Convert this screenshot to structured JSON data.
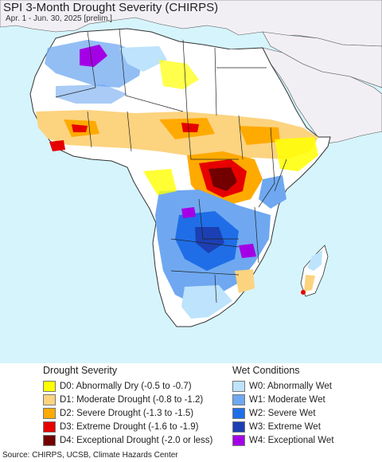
{
  "header": {
    "title": "SPI 3-Month Drought Severity (CHIRPS)",
    "subtitle": "Apr. 1 - Jun. 30, 2025 [prelim.]"
  },
  "legend": {
    "drought": {
      "heading": "Drought Severity",
      "items": [
        {
          "label": "D0: Abnormally Dry (-0.5 to -0.7)",
          "color": "#ffff00"
        },
        {
          "label": "D1: Moderate Drought (-0.8 to -1.2)",
          "color": "#fcd37f"
        },
        {
          "label": "D2: Severe Drought (-1.3 to -1.5)",
          "color": "#ffaa00"
        },
        {
          "label": "D3: Extreme Drought (-1.6 to -1.9)",
          "color": "#e60000"
        },
        {
          "label": "D4: Exceptional Drought (-2.0 or less)",
          "color": "#730000"
        }
      ]
    },
    "wet": {
      "heading": "Wet Conditions",
      "items": [
        {
          "label": "W0: Abnormally Wet",
          "color": "#bde3fd"
        },
        {
          "label": "W1: Moderate Wet",
          "color": "#6fa8f0"
        },
        {
          "label": "W2: Severe Wet",
          "color": "#1f6ee8"
        },
        {
          "label": "W3: Extreme Wet",
          "color": "#1c3fb3"
        },
        {
          "label": "W4: Exceptional Wet",
          "color": "#a400e6"
        }
      ]
    }
  },
  "footer": {
    "source": "Source: CHIRPS, UCSB, Climate Hazards Center"
  },
  "colors": {
    "ocean": "#d6f4fc",
    "land_outside": "#f2eff4",
    "land_normal": "#ffffff"
  }
}
